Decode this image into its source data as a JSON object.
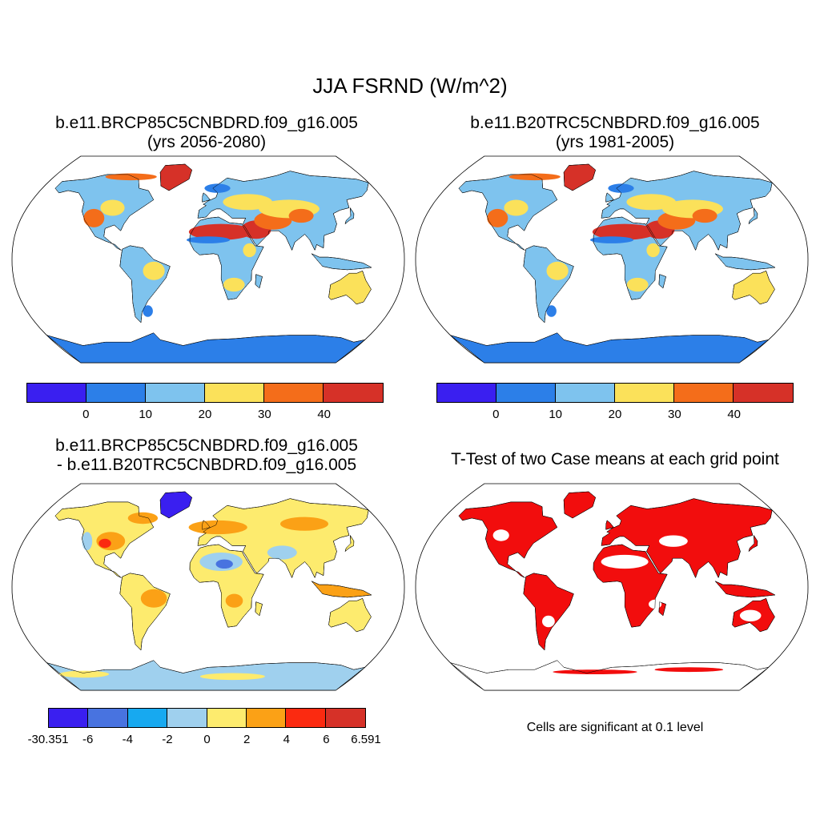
{
  "title": "JJA FSRND (W/m^2)",
  "panels": {
    "future": {
      "title_line1": "b.e11.BRCP85C5CNBDRD.f09_g16.005",
      "title_line2": "(yrs 2056-2080)"
    },
    "historical": {
      "title_line1": "b.e11.B20TRC5CNBDRD.f09_g16.005",
      "title_line2": "(yrs 1981-2005)"
    },
    "difference": {
      "title_line1": "b.e11.BRCP85C5CNBDRD.f09_g16.005",
      "title_line2": "- b.e11.B20TRC5CNBDRD.f09_g16.005"
    },
    "ttest": {
      "title_line1": "T-Test of two Case means at each grid point",
      "note": "Cells are significant at 0.1 level"
    }
  },
  "colorbar_abs": {
    "colors": [
      "#3a1ff0",
      "#2c7fe8",
      "#7ec3ee",
      "#fbe15a",
      "#f46d1a",
      "#d63128"
    ],
    "labels": [
      "0",
      "10",
      "20",
      "30",
      "40"
    ]
  },
  "colorbar_diff": {
    "colors": [
      "#3a1ff0",
      "#4873e0",
      "#17a9f0",
      "#9fd0ee",
      "#fdeb6e",
      "#fba116",
      "#fb2a10",
      "#d63128"
    ],
    "labels": [
      "-30.351",
      "-6",
      "-4",
      "-2",
      "0",
      "2",
      "4",
      "6",
      "6.591"
    ]
  },
  "colors": {
    "ocean": "#ffffff",
    "significant": "#f20d0d",
    "antarctica_abs": "#2c7fe8",
    "antarctica_diff": "#9fd0ee",
    "antarctica_diff_coast": "#fbe15a"
  }
}
